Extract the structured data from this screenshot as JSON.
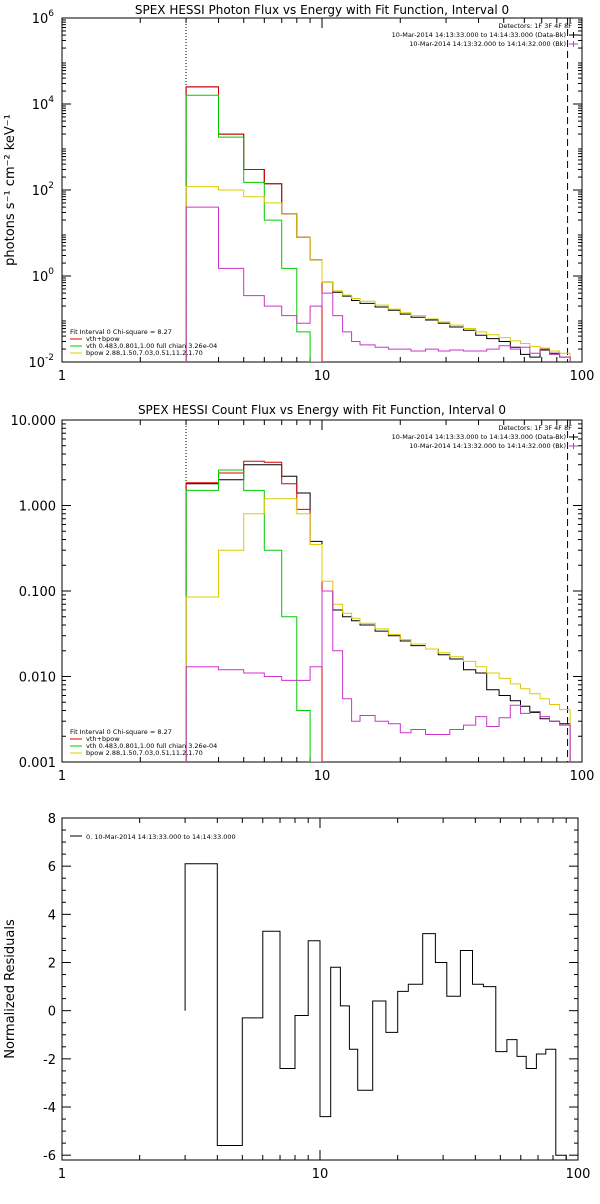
{
  "chart_data": [
    {
      "type": "line",
      "title": "SPEX HESSI Photon Flux vs Energy with Fit Function, Interval 0",
      "ylabel": "photons s⁻¹ cm⁻² keV⁻¹",
      "xlabel": "",
      "xscale": "log",
      "yscale": "log",
      "xlim": [
        1,
        100
      ],
      "ylim": [
        0.01,
        1000000
      ],
      "xticks": [
        {
          "v": 1,
          "label": "1"
        },
        {
          "v": 10,
          "label": "10"
        },
        {
          "v": 100,
          "label": "100"
        }
      ],
      "yticks": [
        {
          "v": 0.01,
          "base": "10",
          "exp": "-2"
        },
        {
          "v": 1,
          "base": "10",
          "exp": "0"
        },
        {
          "v": 100,
          "base": "10",
          "exp": "2"
        },
        {
          "v": 10000,
          "base": "10",
          "exp": "4"
        },
        {
          "v": 1000000,
          "base": "10",
          "exp": "6"
        }
      ],
      "vlines": [
        {
          "x": 3,
          "style": "dotted"
        },
        {
          "x": 88,
          "style": "dashed"
        }
      ],
      "legend_top": {
        "detectors": "Detectors: 1F 3F 4F 8F",
        "entries": [
          {
            "text": "10-Mar-2014 14:13:33.000 to 14:14:33.000 (Data-Bk)",
            "color": "#000000"
          },
          {
            "text": "10-Mar-2014 14:13:32.000 to 14:14:32.000 (Bk)",
            "color": "#cc33cc"
          }
        ]
      },
      "legend_fit": {
        "header": "Fit Interval  0    Chi-square = 8.27",
        "entries": [
          {
            "text": "vth+bpow",
            "color": "#dd0000"
          },
          {
            "text": "vth 0.483,0.801,1.00  full chian 3.26e-04",
            "color": "#00cc00"
          },
          {
            "text": "bpow 2.88,1.50,7.03,0.51,11.2,1.70",
            "color": "#ddcc00"
          }
        ]
      },
      "series": [
        {
          "key": "black",
          "color": "#000000",
          "edges": [
            3,
            4,
            5,
            6,
            7,
            8,
            9,
            10,
            11,
            12,
            13,
            14,
            16,
            18,
            20,
            22,
            25,
            28,
            31,
            35,
            39,
            43,
            48,
            53,
            58,
            63,
            69,
            75,
            82,
            90
          ],
          "values": [
            25000,
            2000,
            300,
            140,
            28,
            8,
            2.4,
            0.72,
            0.42,
            0.34,
            0.27,
            0.23,
            0.19,
            0.16,
            0.13,
            0.11,
            0.095,
            0.08,
            0.065,
            0.055,
            0.042,
            0.035,
            0.03,
            0.022,
            0.015,
            0.013,
            0.019,
            0.016,
            0.013
          ]
        },
        {
          "key": "red",
          "color": "#dd0000",
          "edges": [
            3,
            4,
            5,
            6,
            7,
            8,
            9,
            10
          ],
          "values": [
            25000,
            2000,
            300,
            140,
            28,
            8,
            2.4
          ]
        },
        {
          "key": "green",
          "color": "#00cc00",
          "edges": [
            3,
            4,
            5,
            6,
            7,
            8,
            9,
            10
          ],
          "values": [
            16000,
            1700,
            150,
            20,
            1.5,
            0.05,
            0.01
          ]
        },
        {
          "key": "yellow",
          "color": "#ddcc00",
          "edges": [
            3,
            4,
            5,
            6,
            7,
            8,
            9,
            10,
            11,
            12,
            13,
            14,
            16,
            18,
            20,
            22,
            25,
            28,
            31,
            35,
            39,
            43,
            48,
            53,
            58,
            63,
            69,
            75,
            82,
            90
          ],
          "values": [
            120,
            100,
            70,
            50,
            28,
            8,
            2.4,
            0.72,
            0.45,
            0.36,
            0.3,
            0.26,
            0.21,
            0.17,
            0.14,
            0.12,
            0.1,
            0.085,
            0.072,
            0.06,
            0.05,
            0.043,
            0.037,
            0.031,
            0.027,
            0.023,
            0.021,
            0.018,
            0.016
          ]
        },
        {
          "key": "magenta",
          "color": "#cc33cc",
          "edges": [
            3,
            4,
            5,
            6,
            7,
            8,
            9,
            10,
            11,
            12,
            13,
            14,
            16,
            18,
            20,
            22,
            25,
            28,
            31,
            35,
            39,
            43,
            48,
            53,
            58,
            63,
            69,
            75,
            82,
            90
          ],
          "values": [
            40,
            1.5,
            0.35,
            0.2,
            0.12,
            0.08,
            0.2,
            0.4,
            0.12,
            0.05,
            0.03,
            0.025,
            0.022,
            0.02,
            0.02,
            0.018,
            0.02,
            0.018,
            0.019,
            0.018,
            0.018,
            0.02,
            0.024,
            0.02,
            0.022,
            0.016,
            0.02,
            0.015,
            0.013
          ]
        }
      ]
    },
    {
      "type": "line",
      "title": "SPEX HESSI Count Flux vs Energy with Fit Function, Interval 0",
      "ylabel": "",
      "xlabel": "",
      "xscale": "log",
      "yscale": "log",
      "xlim": [
        1,
        100
      ],
      "ylim": [
        0.001,
        10
      ],
      "xticks": [
        {
          "v": 1,
          "label": "1"
        },
        {
          "v": 10,
          "label": "10"
        },
        {
          "v": 100,
          "label": "100"
        }
      ],
      "yticks": [
        {
          "v": 0.001,
          "label": "0.001"
        },
        {
          "v": 0.01,
          "label": "0.010"
        },
        {
          "v": 0.1,
          "label": "0.100"
        },
        {
          "v": 1,
          "label": "1.000"
        },
        {
          "v": 10,
          "label": "10.000"
        }
      ],
      "vlines": [
        {
          "x": 3,
          "style": "dotted"
        },
        {
          "x": 88,
          "style": "dashed"
        }
      ],
      "legend_top": {
        "detectors": "Detectors: 1F 3F 4F 8F",
        "entries": [
          {
            "text": "10-Mar-2014 14:13:33.000 to 14:14:33.000 (Data-Bk)",
            "color": "#000000"
          },
          {
            "text": "10-Mar-2014 14:13:32.000 to 14:14:32.000 (Bk)",
            "color": "#cc33cc"
          }
        ]
      },
      "legend_fit": {
        "header": "Fit Interval  0    Chi-square = 8.27",
        "entries": [
          {
            "text": "vth+bpow",
            "color": "#dd0000"
          },
          {
            "text": "vth 0.483,0.801,1.00  full chian 3.26e-04",
            "color": "#00cc00"
          },
          {
            "text": "bpow 2.88,1.50,7.03,0.51,11.2,1.70",
            "color": "#ddcc00"
          }
        ]
      },
      "series": [
        {
          "key": "black",
          "color": "#000000",
          "edges": [
            3,
            4,
            5,
            6,
            7,
            8,
            9,
            10,
            11,
            12,
            13,
            14,
            16,
            18,
            20,
            22,
            25,
            28,
            31,
            35,
            39,
            43,
            48,
            53,
            58,
            63,
            69,
            75,
            82,
            90
          ],
          "values": [
            1.8,
            2.0,
            3.0,
            3.0,
            2.2,
            1.4,
            0.38,
            0.1,
            0.06,
            0.05,
            0.045,
            0.04,
            0.034,
            0.03,
            0.026,
            0.023,
            0.021,
            0.018,
            0.016,
            0.012,
            0.011,
            0.007,
            0.006,
            0.0052,
            0.0045,
            0.0038,
            0.0032,
            0.003,
            0.0028
          ]
        },
        {
          "key": "red",
          "color": "#dd0000",
          "edges": [
            3,
            4,
            5,
            6,
            7,
            8,
            9,
            10
          ],
          "values": [
            1.85,
            2.4,
            3.3,
            3.2,
            1.8,
            0.9,
            0.35
          ]
        },
        {
          "key": "green",
          "color": "#00cc00",
          "edges": [
            3,
            4,
            5,
            6,
            7,
            8,
            9,
            10
          ],
          "values": [
            1.5,
            2.6,
            1.5,
            0.3,
            0.05,
            0.004,
            0.001
          ]
        },
        {
          "key": "yellow",
          "color": "#ddcc00",
          "edges": [
            3,
            4,
            5,
            6,
            7,
            8,
            9,
            10,
            11,
            12,
            13,
            14,
            16,
            18,
            20,
            22,
            25,
            28,
            31,
            35,
            39,
            43,
            48,
            53,
            58,
            63,
            69,
            75,
            82,
            90
          ],
          "values": [
            0.085,
            0.3,
            0.8,
            1.2,
            1.2,
            0.8,
            0.35,
            0.13,
            0.07,
            0.055,
            0.048,
            0.042,
            0.036,
            0.031,
            0.027,
            0.024,
            0.021,
            0.019,
            0.017,
            0.015,
            0.013,
            0.011,
            0.0095,
            0.0082,
            0.0072,
            0.0063,
            0.0055,
            0.0047,
            0.0041
          ]
        },
        {
          "key": "magenta",
          "color": "#cc33cc",
          "edges": [
            3,
            4,
            5,
            6,
            7,
            8,
            9,
            10,
            11,
            12,
            13,
            14,
            16,
            18,
            20,
            22,
            25,
            28,
            31,
            35,
            39,
            43,
            48,
            53,
            58,
            63,
            69,
            75,
            82,
            90
          ],
          "values": [
            0.013,
            0.012,
            0.011,
            0.01,
            0.009,
            0.009,
            0.013,
            0.1,
            0.02,
            0.0055,
            0.003,
            0.0035,
            0.003,
            0.0028,
            0.0022,
            0.0024,
            0.0021,
            0.0021,
            0.0024,
            0.0027,
            0.0034,
            0.0026,
            0.0033,
            0.0046,
            0.0037,
            0.0039,
            0.0034,
            0.003,
            0.0027
          ]
        }
      ]
    },
    {
      "type": "line",
      "title": "",
      "ylabel": "Normalized Residuals",
      "xlabel": "",
      "xscale": "log",
      "yscale": "linear",
      "xlim": [
        1,
        100
      ],
      "ylim": [
        -6.2,
        8
      ],
      "xticks": [
        {
          "v": 1,
          "label": "1"
        },
        {
          "v": 10,
          "label": "10"
        },
        {
          "v": 100,
          "label": "100"
        }
      ],
      "yticks": [
        {
          "v": -6,
          "label": "-6"
        },
        {
          "v": -4,
          "label": "-4"
        },
        {
          "v": -2,
          "label": "-2"
        },
        {
          "v": 0,
          "label": "0"
        },
        {
          "v": 2,
          "label": "2"
        },
        {
          "v": 4,
          "label": "4"
        },
        {
          "v": 6,
          "label": "6"
        },
        {
          "v": 8,
          "label": "8"
        }
      ],
      "legend_top": {
        "entries": [
          {
            "text": "0. 10-Mar-2014 14:13:33.000 to 14:14:33.000",
            "color": "#000000"
          }
        ]
      },
      "series": [
        {
          "key": "residuals",
          "color": "#000000",
          "edges": [
            3,
            4,
            5,
            6,
            7,
            8,
            9,
            10,
            11,
            12,
            13,
            14,
            16,
            18,
            20,
            22,
            25,
            28,
            31,
            35,
            39,
            43,
            48,
            53,
            58,
            63,
            69,
            75,
            82,
            90
          ],
          "values": [
            6.1,
            -5.6,
            -0.3,
            3.3,
            -2.4,
            -0.2,
            2.9,
            -4.4,
            1.8,
            0.2,
            -1.6,
            -3.3,
            0.4,
            -0.9,
            0.8,
            1.1,
            3.2,
            2.0,
            0.6,
            2.5,
            1.1,
            1.0,
            -1.7,
            -1.2,
            -1.9,
            -2.4,
            -1.8,
            -1.6,
            -6.0
          ]
        }
      ]
    }
  ]
}
